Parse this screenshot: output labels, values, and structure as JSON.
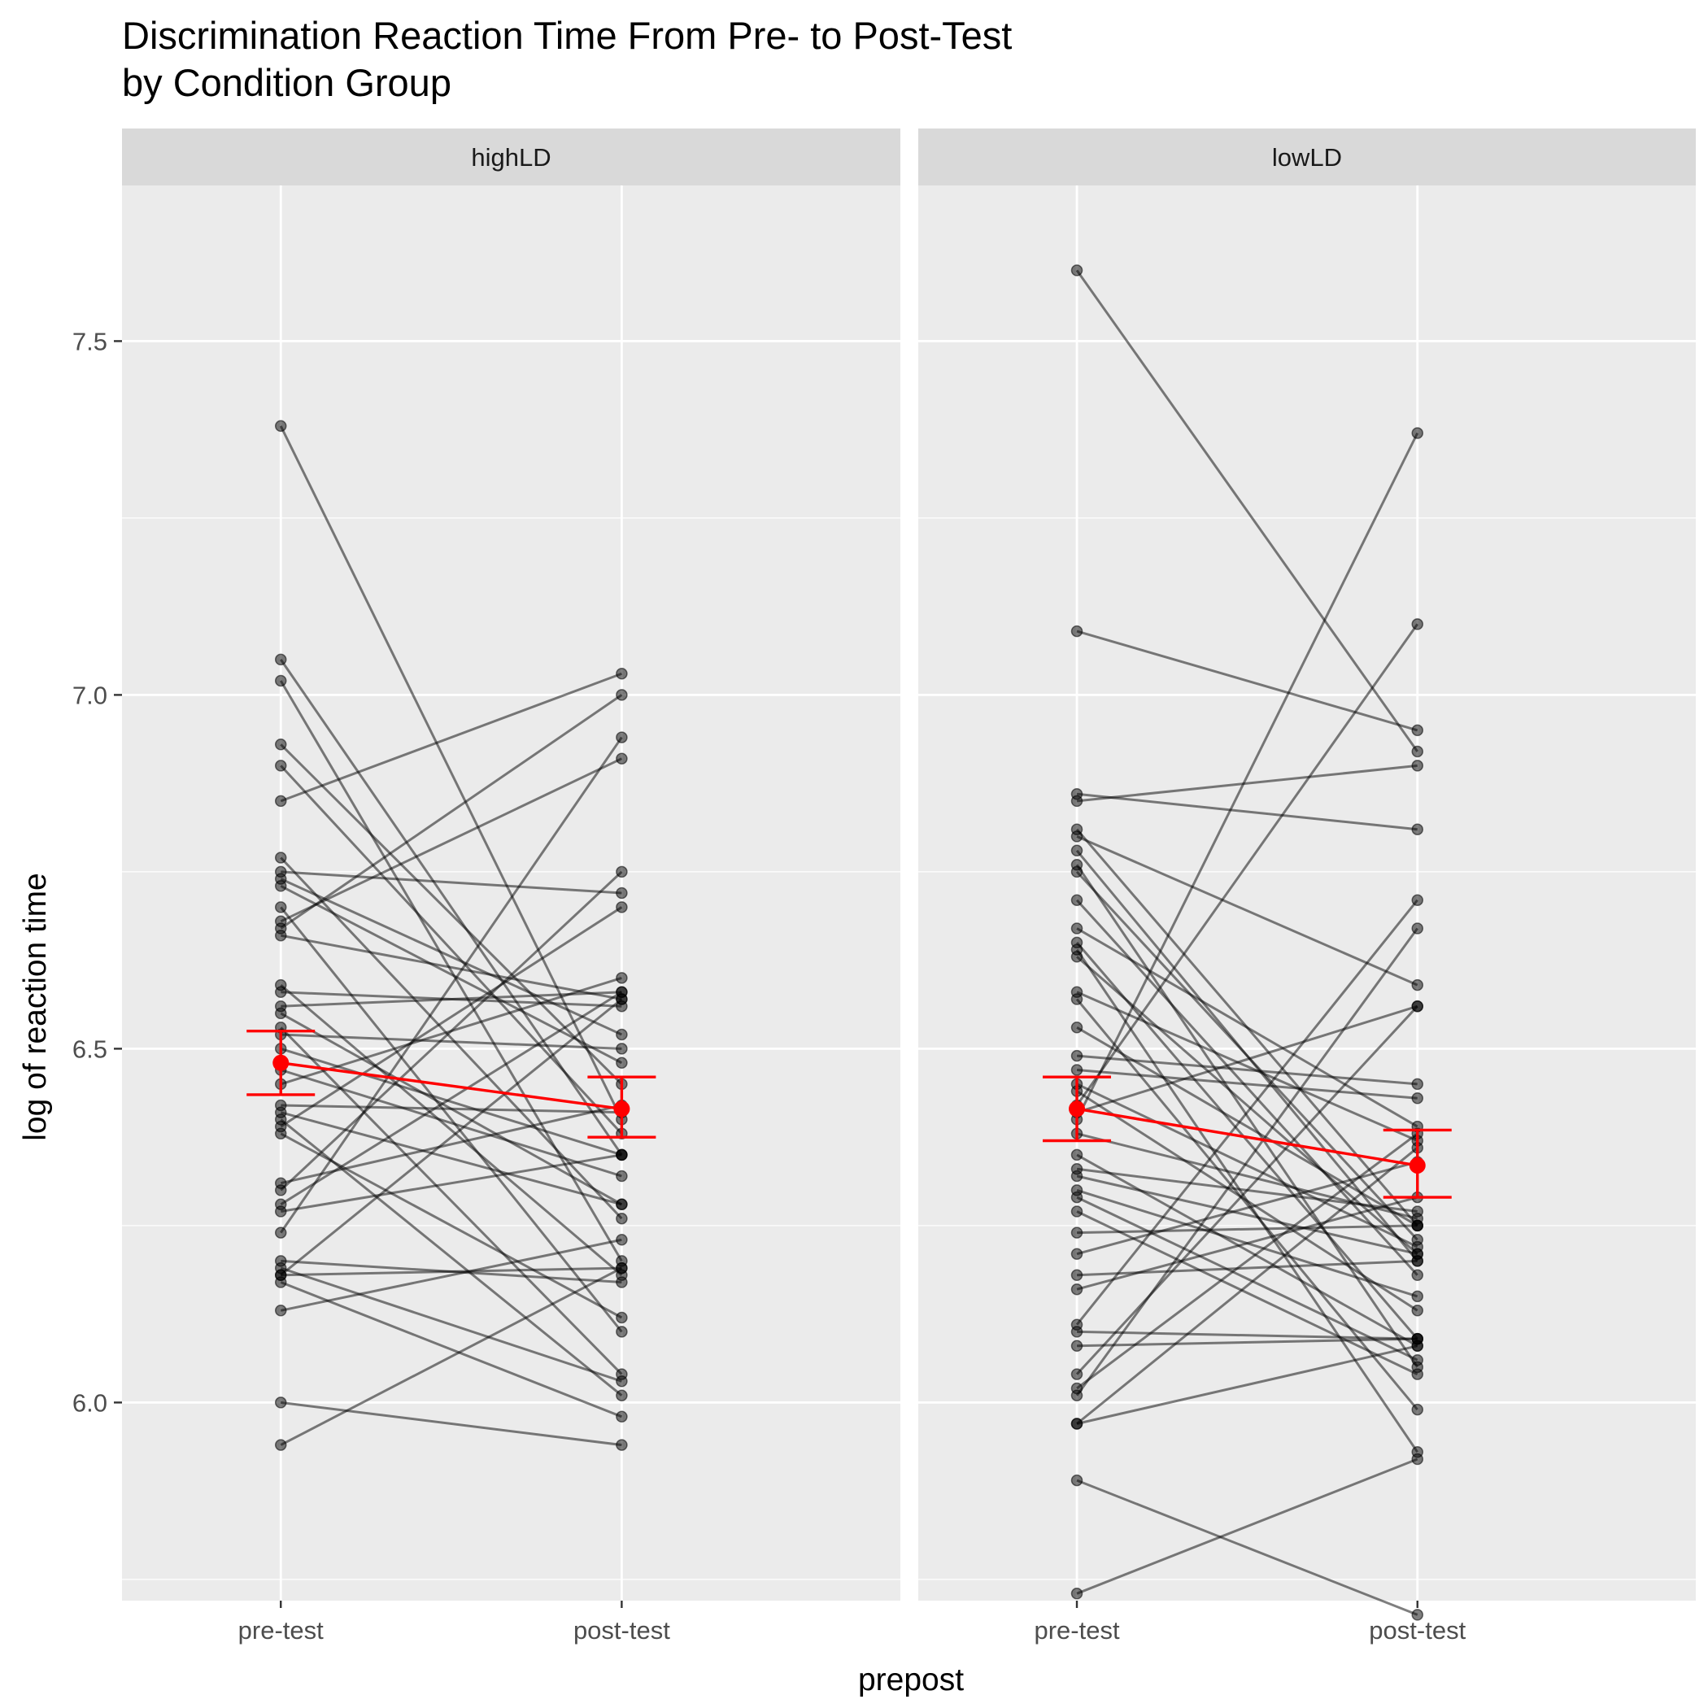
{
  "chart_data": {
    "type": "line",
    "title": "Discrimination Reaction Time From Pre- to Post-Test",
    "subtitle": "by Condition Group",
    "xlabel": "prepost",
    "ylabel": "log of reaction time",
    "categories": [
      "pre-test",
      "post-test"
    ],
    "ylim": [
      5.72,
      7.72
    ],
    "yticks": [
      6.0,
      6.5,
      7.0,
      7.5
    ],
    "ytick_labels": [
      "6.0",
      "6.5",
      "7.0",
      "7.5"
    ],
    "grid": true,
    "colors": {
      "panel_bg": "#ebebeb",
      "strip_bg": "#d9d9d9",
      "grid": "#ffffff",
      "subject": "#000000",
      "mean": "#ff0000"
    },
    "panels": [
      {
        "name": "highLD",
        "mean": {
          "pre": 6.48,
          "post": 6.415
        },
        "error": {
          "pre": [
            6.435,
            6.525
          ],
          "post": [
            6.375,
            6.46
          ]
        },
        "subjects": [
          [
            7.38,
            6.4
          ],
          [
            7.05,
            6.35
          ],
          [
            7.02,
            6.2
          ],
          [
            6.93,
            6.45
          ],
          [
            6.9,
            6.38
          ],
          [
            6.85,
            7.03
          ],
          [
            6.77,
            6.26
          ],
          [
            6.75,
            6.72
          ],
          [
            6.74,
            6.52
          ],
          [
            6.73,
            6.48
          ],
          [
            6.7,
            6.1
          ],
          [
            6.68,
            6.91
          ],
          [
            6.67,
            7.0
          ],
          [
            6.66,
            6.57
          ],
          [
            6.59,
            6.18
          ],
          [
            6.58,
            6.56
          ],
          [
            6.56,
            6.58
          ],
          [
            6.55,
            6.28
          ],
          [
            6.53,
            6.04
          ],
          [
            6.52,
            6.5
          ],
          [
            6.5,
            6.35
          ],
          [
            6.47,
            6.32
          ],
          [
            6.45,
            6.6
          ],
          [
            6.42,
            6.41
          ],
          [
            6.41,
            6.28
          ],
          [
            6.4,
            6.01
          ],
          [
            6.39,
            6.7
          ],
          [
            6.38,
            6.12
          ],
          [
            6.31,
            6.42
          ],
          [
            6.3,
            6.75
          ],
          [
            6.28,
            6.58
          ],
          [
            6.27,
            6.35
          ],
          [
            6.24,
            6.94
          ],
          [
            6.2,
            6.17
          ],
          [
            6.19,
            6.03
          ],
          [
            6.18,
            6.19
          ],
          [
            6.18,
            6.57
          ],
          [
            6.17,
            5.98
          ],
          [
            6.13,
            6.23
          ],
          [
            6.0,
            5.94
          ],
          [
            5.94,
            6.19
          ]
        ]
      },
      {
        "name": "lowLD",
        "mean": {
          "pre": 6.415,
          "post": 6.335
        },
        "error": {
          "pre": [
            6.37,
            6.46
          ],
          "post": [
            6.29,
            6.385
          ]
        },
        "subjects": [
          [
            7.6,
            6.92
          ],
          [
            7.09,
            6.95
          ],
          [
            6.86,
            6.81
          ],
          [
            6.85,
            6.9
          ],
          [
            6.81,
            6.25
          ],
          [
            6.8,
            6.59
          ],
          [
            6.78,
            6.2
          ],
          [
            6.76,
            6.05
          ],
          [
            6.75,
            6.23
          ],
          [
            6.71,
            6.18
          ],
          [
            6.67,
            6.39
          ],
          [
            6.65,
            6.09
          ],
          [
            6.64,
            5.93
          ],
          [
            6.63,
            6.21
          ],
          [
            6.58,
            6.37
          ],
          [
            6.57,
            5.99
          ],
          [
            6.53,
            6.25
          ],
          [
            6.49,
            6.45
          ],
          [
            6.47,
            6.43
          ],
          [
            6.45,
            6.22
          ],
          [
            6.44,
            6.13
          ],
          [
            6.42,
            7.1
          ],
          [
            6.41,
            6.56
          ],
          [
            6.4,
            7.37
          ],
          [
            6.38,
            6.26
          ],
          [
            6.35,
            6.08
          ],
          [
            6.33,
            6.27
          ],
          [
            6.32,
            6.21
          ],
          [
            6.3,
            6.15
          ],
          [
            6.29,
            6.06
          ],
          [
            6.27,
            6.04
          ],
          [
            6.24,
            6.25
          ],
          [
            6.21,
            6.34
          ],
          [
            6.18,
            6.2
          ],
          [
            6.16,
            6.29
          ],
          [
            6.11,
            6.71
          ],
          [
            6.1,
            6.09
          ],
          [
            6.08,
            6.09
          ],
          [
            6.04,
            6.56
          ],
          [
            6.02,
            6.38
          ],
          [
            6.01,
            6.67
          ],
          [
            5.97,
            6.08
          ],
          [
            5.97,
            6.36
          ],
          [
            5.89,
            5.7
          ],
          [
            5.73,
            5.92
          ]
        ]
      }
    ]
  }
}
